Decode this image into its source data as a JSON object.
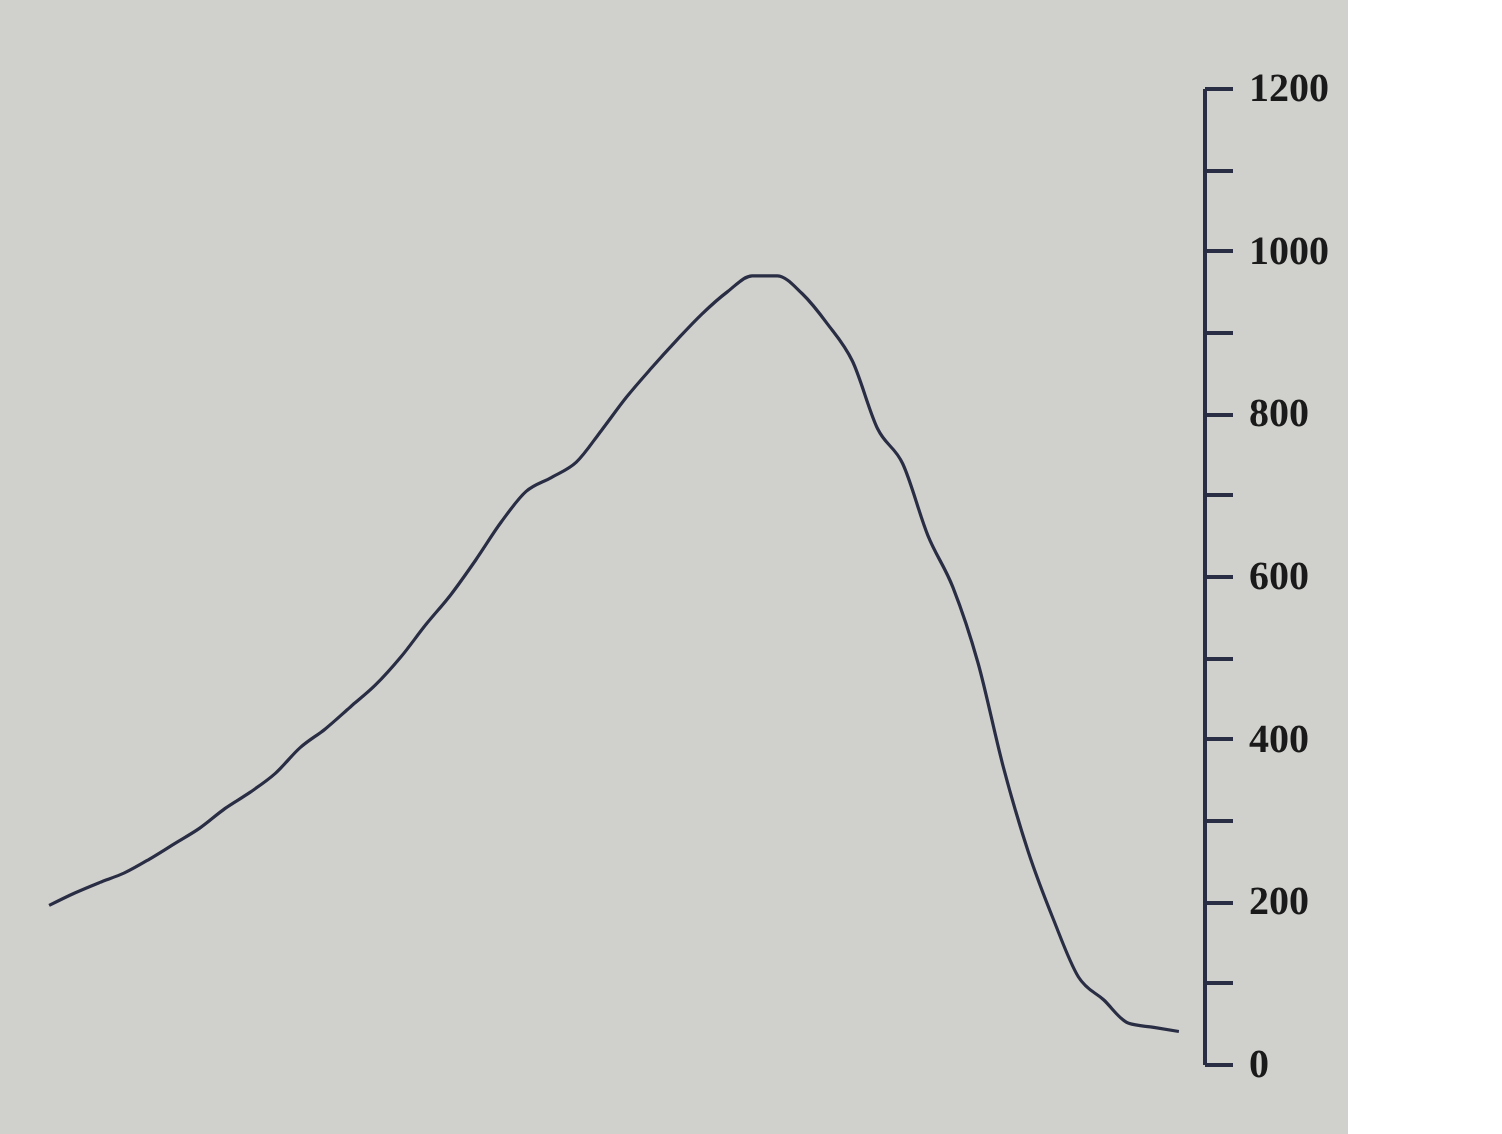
{
  "chart_data": {
    "type": "line",
    "categories": [
      null,
      null,
      null,
      null,
      null,
      null,
      null,
      null,
      null,
      null,
      null,
      null,
      null,
      null,
      null,
      null,
      null,
      null,
      null,
      null,
      null,
      null,
      null,
      null,
      null,
      null,
      null,
      null,
      null,
      null,
      null,
      null,
      null,
      null,
      null,
      null,
      null,
      null,
      null,
      null,
      null,
      null,
      null,
      null,
      null,
      null
    ],
    "series": [
      {
        "color": "#2a2e45",
        "values": [
          195,
          210,
          223,
          235,
          252,
          271,
          290,
          314,
          334,
          357,
          389,
          412,
          439,
          466,
          500,
          540,
          577,
          620,
          666,
          704,
          721,
          740,
          779,
          820,
          856,
          890,
          922,
          949,
          969,
          969,
          947,
          910,
          864,
          781,
          738,
          650,
          586,
          493,
          366,
          261,
          178,
          107,
          79,
          50,
          45,
          40
        ]
      }
    ],
    "ylim": [
      0,
      1200
    ],
    "yticks": [
      0,
      {
        "value": 100,
        "label": null
      },
      200,
      {
        "value": 300,
        "label": null
      },
      400,
      {
        "value": 500,
        "label": null
      },
      600,
      {
        "value": 700,
        "label": null
      },
      800,
      {
        "value": 900,
        "label": null
      },
      1000,
      {
        "value": 1100,
        "label": null
      },
      1200
    ],
    "tick_labels": "y",
    "grid": false,
    "marker": "none",
    "line_style": "solid"
  }
}
